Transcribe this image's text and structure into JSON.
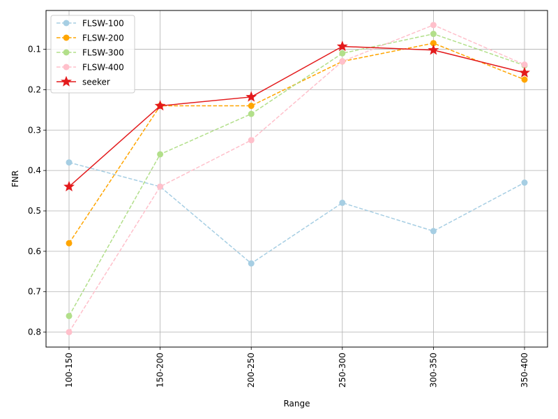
{
  "chart_data": {
    "type": "line",
    "title": "",
    "xlabel": "Range",
    "ylabel": "FNR",
    "categories": [
      "100-150",
      "150-200",
      "200-250",
      "250-300",
      "300-350",
      "350-400"
    ],
    "y_inverted": true,
    "ylim": [
      0.837,
      0.004
    ],
    "yticks": [
      0.1,
      0.2,
      0.3,
      0.4,
      0.5,
      0.6,
      0.7,
      0.8
    ],
    "ytick_labels": [
      "0.1",
      "0.2",
      "0.3",
      "0.4",
      "0.5",
      "0.6",
      "0.7",
      "0.8"
    ],
    "grid": true,
    "legend_position": "top-left",
    "series": [
      {
        "name": "FLSW-100",
        "color": "#a6cee3",
        "dash": "dashed",
        "marker": "circle",
        "values": [
          0.38,
          0.44,
          0.63,
          0.48,
          0.55,
          0.43
        ]
      },
      {
        "name": "FLSW-200",
        "color": "#ffa500",
        "dash": "dashed",
        "marker": "circle",
        "values": [
          0.58,
          0.24,
          0.24,
          0.13,
          0.085,
          0.175
        ]
      },
      {
        "name": "FLSW-300",
        "color": "#b2df8a",
        "dash": "dashed",
        "marker": "circle",
        "values": [
          0.76,
          0.36,
          0.26,
          0.11,
          0.062,
          0.14
        ]
      },
      {
        "name": "FLSW-400",
        "color": "#ffc0cb",
        "dash": "dashed",
        "marker": "circle",
        "values": [
          0.8,
          0.44,
          0.325,
          0.13,
          0.04,
          0.138
        ]
      },
      {
        "name": "seeker",
        "color": "#e31a1c",
        "dash": "solid",
        "marker": "star",
        "values": [
          0.44,
          0.24,
          0.218,
          0.093,
          0.102,
          0.158
        ]
      }
    ]
  }
}
